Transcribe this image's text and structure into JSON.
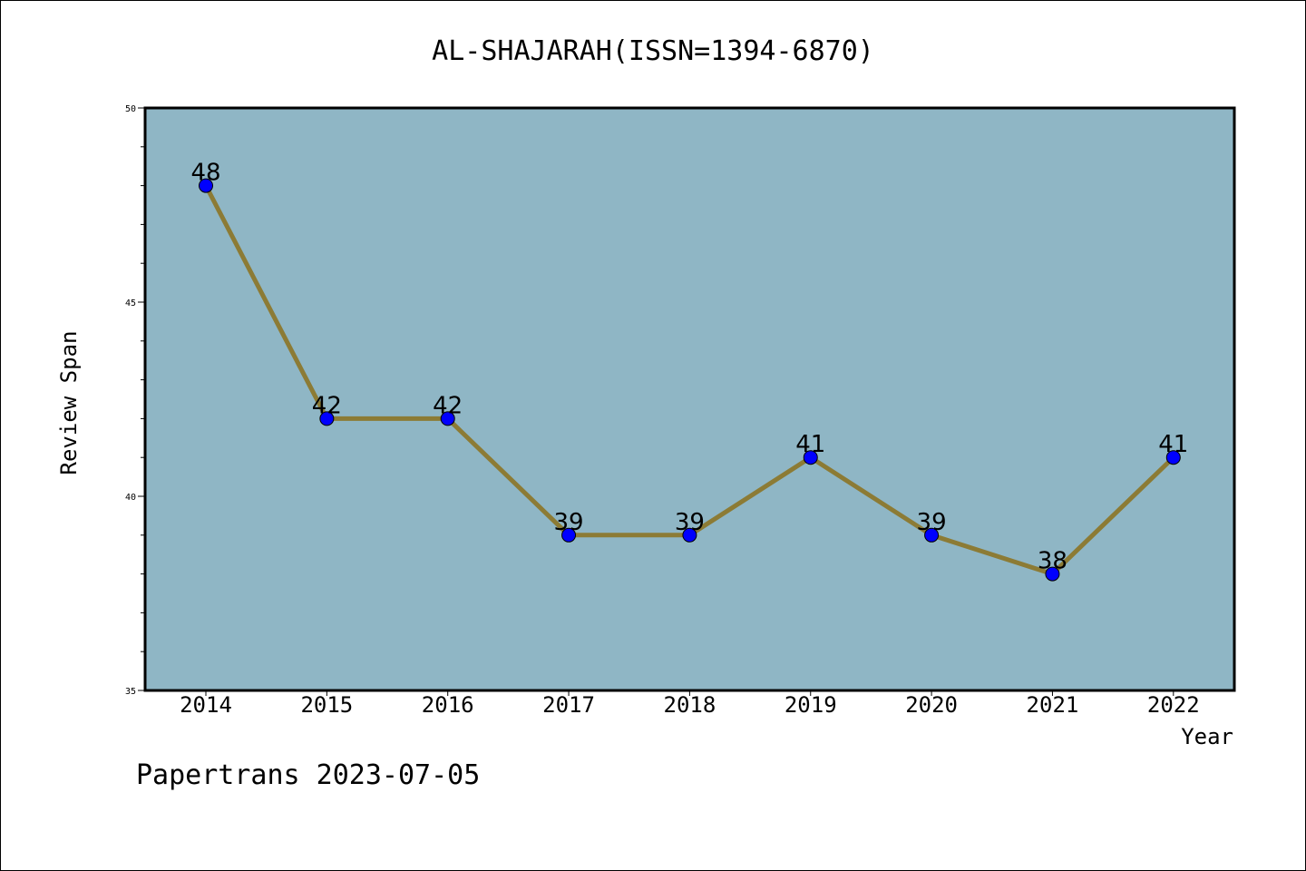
{
  "chart_data": {
    "type": "line",
    "title": "AL-SHAJARAH(ISSN=1394-6870)",
    "xlabel": "Year",
    "ylabel": "Review Span",
    "categories": [
      "2014",
      "2015",
      "2016",
      "2017",
      "2018",
      "2019",
      "2020",
      "2021",
      "2022"
    ],
    "values": [
      48,
      42,
      42,
      39,
      39,
      41,
      39,
      38,
      41
    ],
    "ylim": [
      35,
      50
    ],
    "yticks": [
      35,
      40,
      45,
      50
    ],
    "data_labels": [
      "48",
      "42",
      "42",
      "39",
      "39",
      "41",
      "39",
      "38",
      "41"
    ],
    "grid": false,
    "colors": {
      "plot_background": "#8fb6c5",
      "line": "#8c7b35",
      "marker": "#0000ff"
    }
  },
  "footer": {
    "text": "Papertrans 2023-07-05"
  }
}
